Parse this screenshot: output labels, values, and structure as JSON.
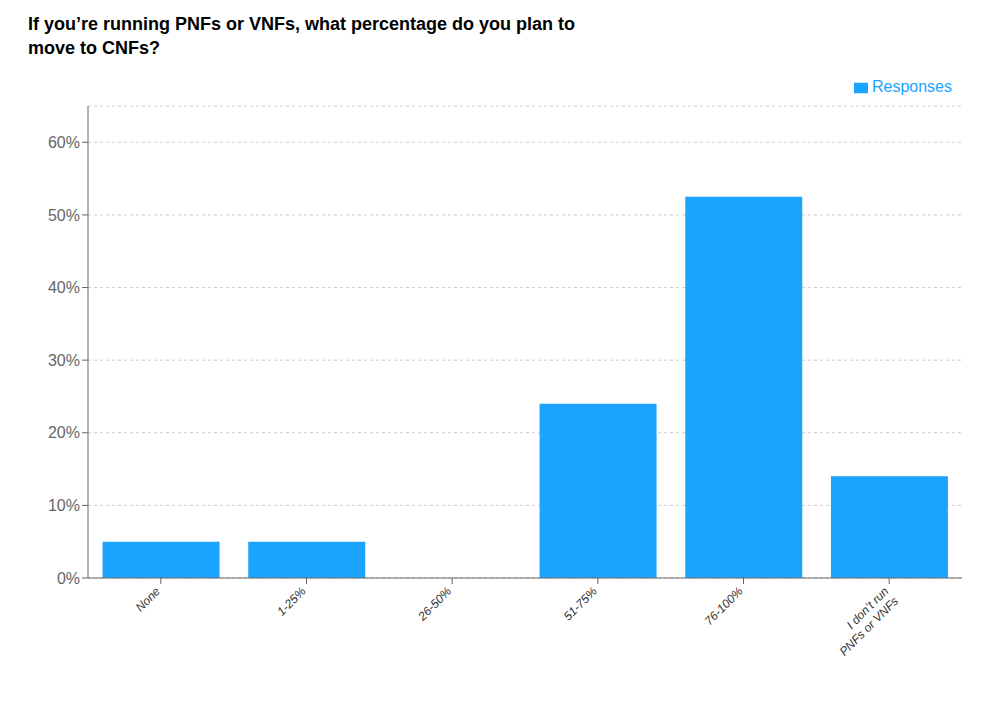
{
  "chart_data": {
    "type": "bar",
    "title": "If you’re running PNFs or VNFs, what percentage do you plan to\nmove to CNFs?",
    "categories": [
      "None",
      "1-25%",
      "26-50%",
      "51-75%",
      "76-100%",
      "I don’t run\nPNFs or VNFs"
    ],
    "series": [
      {
        "name": "Responses",
        "color": "#1aa3ff",
        "values": [
          5.0,
          5.0,
          0.0,
          24.0,
          52.5,
          14.0
        ]
      }
    ],
    "ylim": [
      0,
      65
    ],
    "yticks": [
      {
        "value": 0,
        "label": "0%"
      },
      {
        "value": 10,
        "label": "10%"
      },
      {
        "value": 20,
        "label": "20%"
      },
      {
        "value": 30,
        "label": "30%"
      },
      {
        "value": 40,
        "label": "40%"
      },
      {
        "value": 50,
        "label": "50%"
      },
      {
        "value": 60,
        "label": "60%"
      }
    ],
    "grid": "y",
    "legend": "upper right"
  }
}
